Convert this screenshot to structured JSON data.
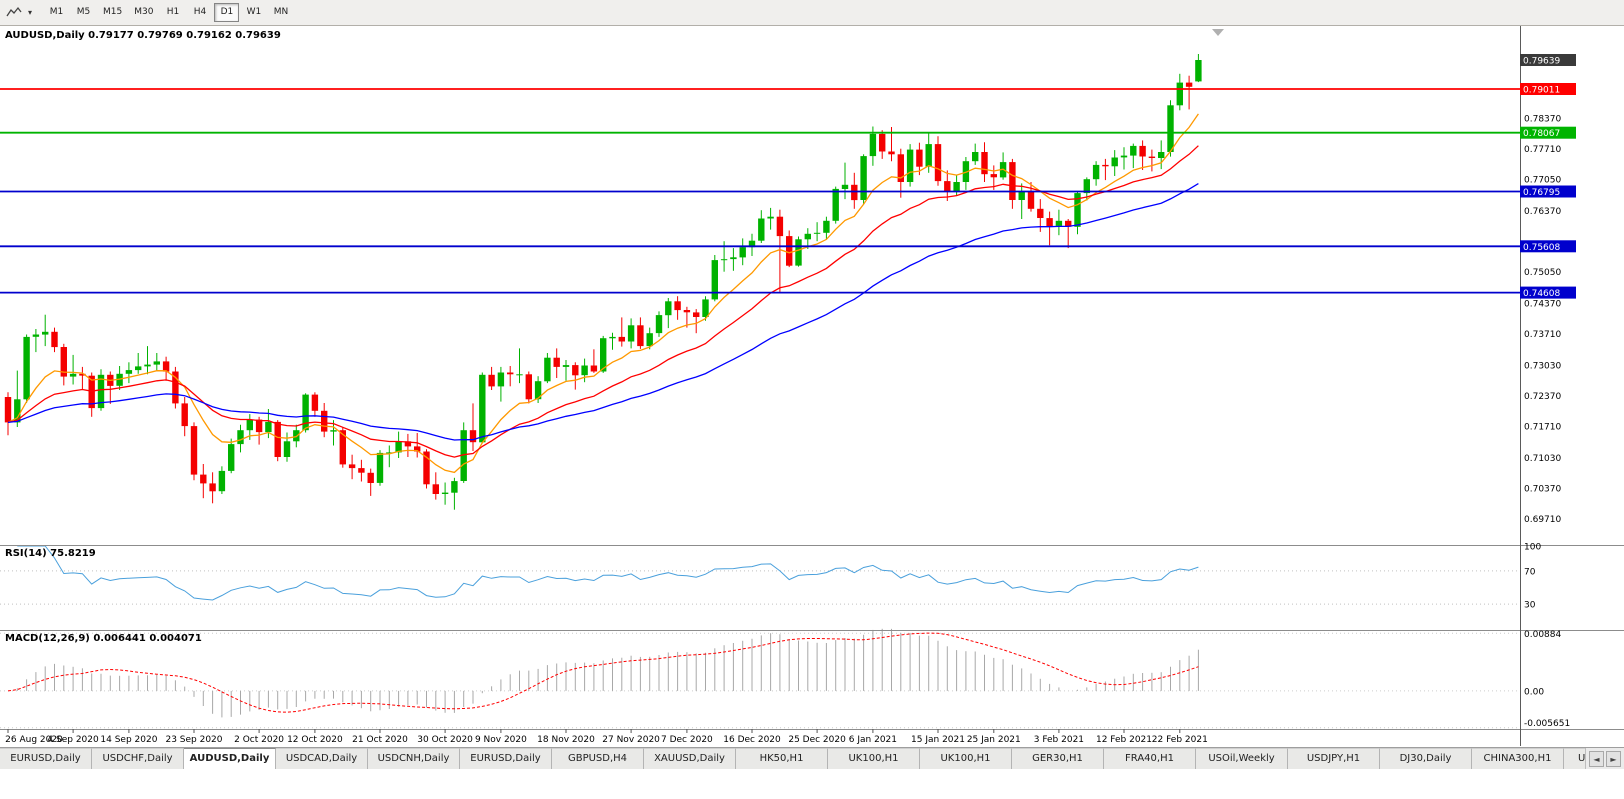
{
  "toolbar": {
    "dropdown_caret": "▾",
    "timeframes": [
      {
        "label": "M1",
        "active": false
      },
      {
        "label": "M5",
        "active": false
      },
      {
        "label": "M15",
        "active": false
      },
      {
        "label": "M30",
        "active": false
      },
      {
        "label": "H1",
        "active": false
      },
      {
        "label": "H4",
        "active": false
      },
      {
        "label": "D1",
        "active": true
      },
      {
        "label": "W1",
        "active": false
      },
      {
        "label": "MN",
        "active": false
      }
    ]
  },
  "chart": {
    "title": "AUDUSD,Daily 0.79177 0.79769 0.79162 0.79639"
  },
  "chart_data": {
    "type": "candlestick",
    "symbol": "AUDUSD",
    "period": "Daily",
    "ohlc_current": {
      "open": "0.79177",
      "high": "0.79769",
      "low": "0.79162",
      "close": "0.79639"
    },
    "colors": {
      "up": "#00b200",
      "down": "#f40000"
    },
    "price_pane": {
      "top_price": 0.80353,
      "bottom_price": 0.69169
    },
    "candles": [
      [
        0.7235,
        0.7245,
        0.7152,
        0.718
      ],
      [
        0.718,
        0.7292,
        0.717,
        0.723
      ],
      [
        0.723,
        0.737,
        0.7222,
        0.7365
      ],
      [
        0.7365,
        0.7382,
        0.7332,
        0.737
      ],
      [
        0.737,
        0.7413,
        0.7345,
        0.7376
      ],
      [
        0.7376,
        0.7385,
        0.7332,
        0.7343
      ],
      [
        0.7343,
        0.735,
        0.726,
        0.7279
      ],
      [
        0.7279,
        0.7326,
        0.7262,
        0.7285
      ],
      [
        0.7285,
        0.73,
        0.7252,
        0.7281
      ],
      [
        0.7281,
        0.7288,
        0.7192,
        0.7211
      ],
      [
        0.7211,
        0.7295,
        0.7205,
        0.7283
      ],
      [
        0.7283,
        0.729,
        0.722,
        0.7259
      ],
      [
        0.7259,
        0.7302,
        0.725,
        0.7285
      ],
      [
        0.7285,
        0.731,
        0.7265,
        0.7293
      ],
      [
        0.7293,
        0.733,
        0.7285,
        0.7301
      ],
      [
        0.7301,
        0.7345,
        0.7284,
        0.7305
      ],
      [
        0.7305,
        0.733,
        0.729,
        0.7312
      ],
      [
        0.7312,
        0.7322,
        0.727,
        0.729
      ],
      [
        0.729,
        0.73,
        0.721,
        0.7221
      ],
      [
        0.7221,
        0.7235,
        0.715,
        0.7172
      ],
      [
        0.7172,
        0.718,
        0.7055,
        0.7067
      ],
      [
        0.7067,
        0.709,
        0.7016,
        0.7048
      ],
      [
        0.7048,
        0.7072,
        0.7005,
        0.7031
      ],
      [
        0.7031,
        0.7085,
        0.7025,
        0.7075
      ],
      [
        0.7075,
        0.7145,
        0.707,
        0.7133
      ],
      [
        0.7133,
        0.7175,
        0.7115,
        0.7163
      ],
      [
        0.7163,
        0.7198,
        0.7142,
        0.7186
      ],
      [
        0.7186,
        0.7192,
        0.7132,
        0.7159
      ],
      [
        0.7159,
        0.7209,
        0.7146,
        0.7181
      ],
      [
        0.7181,
        0.7185,
        0.7096,
        0.7105
      ],
      [
        0.7105,
        0.7158,
        0.7095,
        0.7139
      ],
      [
        0.7139,
        0.7175,
        0.7126,
        0.7163
      ],
      [
        0.7163,
        0.7243,
        0.7158,
        0.724
      ],
      [
        0.724,
        0.7245,
        0.7192,
        0.7205
      ],
      [
        0.7205,
        0.7222,
        0.7148,
        0.716
      ],
      [
        0.716,
        0.7185,
        0.713,
        0.7163
      ],
      [
        0.7163,
        0.717,
        0.7082,
        0.7089
      ],
      [
        0.7089,
        0.711,
        0.7057,
        0.7081
      ],
      [
        0.7081,
        0.7099,
        0.7052,
        0.7071
      ],
      [
        0.7071,
        0.708,
        0.7021,
        0.7049
      ],
      [
        0.7049,
        0.712,
        0.7043,
        0.7114
      ],
      [
        0.7114,
        0.713,
        0.7083,
        0.7115
      ],
      [
        0.7115,
        0.716,
        0.7103,
        0.7139
      ],
      [
        0.7139,
        0.7155,
        0.7105,
        0.7128
      ],
      [
        0.7128,
        0.7157,
        0.7104,
        0.7117
      ],
      [
        0.7117,
        0.7122,
        0.7037,
        0.7046
      ],
      [
        0.7046,
        0.7072,
        0.7013,
        0.7025
      ],
      [
        0.7025,
        0.705,
        0.7002,
        0.7028
      ],
      [
        0.7028,
        0.706,
        0.6991,
        0.7053
      ],
      [
        0.7053,
        0.718,
        0.7049,
        0.7163
      ],
      [
        0.7163,
        0.7221,
        0.7118,
        0.7137
      ],
      [
        0.7137,
        0.7288,
        0.7135,
        0.7283
      ],
      [
        0.7283,
        0.73,
        0.725,
        0.7258
      ],
      [
        0.7258,
        0.73,
        0.7225,
        0.7288
      ],
      [
        0.7288,
        0.7302,
        0.7258,
        0.7284
      ],
      [
        0.7284,
        0.734,
        0.7265,
        0.7284
      ],
      [
        0.7284,
        0.729,
        0.7221,
        0.723
      ],
      [
        0.723,
        0.728,
        0.7222,
        0.7269
      ],
      [
        0.7269,
        0.733,
        0.7265,
        0.732
      ],
      [
        0.732,
        0.734,
        0.7276,
        0.73
      ],
      [
        0.73,
        0.7315,
        0.727,
        0.7304
      ],
      [
        0.7304,
        0.731,
        0.7251,
        0.7282
      ],
      [
        0.7282,
        0.7318,
        0.7267,
        0.7303
      ],
      [
        0.7303,
        0.7338,
        0.7287,
        0.729
      ],
      [
        0.729,
        0.7367,
        0.7287,
        0.7362
      ],
      [
        0.7362,
        0.7374,
        0.7337,
        0.7365
      ],
      [
        0.7365,
        0.7407,
        0.7344,
        0.7355
      ],
      [
        0.7355,
        0.7405,
        0.734,
        0.739
      ],
      [
        0.739,
        0.7407,
        0.7339,
        0.7345
      ],
      [
        0.7345,
        0.7385,
        0.7338,
        0.7373
      ],
      [
        0.7373,
        0.742,
        0.7365,
        0.7412
      ],
      [
        0.7412,
        0.7449,
        0.7384,
        0.7442
      ],
      [
        0.7442,
        0.7453,
        0.7402,
        0.7423
      ],
      [
        0.7423,
        0.743,
        0.7385,
        0.7418
      ],
      [
        0.7418,
        0.7425,
        0.7373,
        0.7408
      ],
      [
        0.7408,
        0.7453,
        0.74,
        0.7446
      ],
      [
        0.7446,
        0.7542,
        0.7442,
        0.7531
      ],
      [
        0.7531,
        0.7572,
        0.7506,
        0.7533
      ],
      [
        0.7533,
        0.7557,
        0.7508,
        0.7537
      ],
      [
        0.7537,
        0.7578,
        0.752,
        0.7559
      ],
      [
        0.7559,
        0.7588,
        0.754,
        0.7573
      ],
      [
        0.7573,
        0.7639,
        0.7568,
        0.7621
      ],
      [
        0.7621,
        0.7644,
        0.7597,
        0.7625
      ],
      [
        0.7625,
        0.764,
        0.7462,
        0.7583
      ],
      [
        0.7583,
        0.7595,
        0.7516,
        0.7519
      ],
      [
        0.7519,
        0.7582,
        0.7517,
        0.7576
      ],
      [
        0.7576,
        0.76,
        0.7555,
        0.7588
      ],
      [
        0.7588,
        0.7613,
        0.7572,
        0.759
      ],
      [
        0.759,
        0.7625,
        0.7575,
        0.7616
      ],
      [
        0.7616,
        0.769,
        0.761,
        0.7685
      ],
      [
        0.7685,
        0.7742,
        0.7663,
        0.7694
      ],
      [
        0.7694,
        0.772,
        0.7642,
        0.7661
      ],
      [
        0.7661,
        0.776,
        0.7652,
        0.7756
      ],
      [
        0.7756,
        0.782,
        0.7735,
        0.7804
      ],
      [
        0.7804,
        0.7812,
        0.775,
        0.7766
      ],
      [
        0.7766,
        0.7819,
        0.7745,
        0.776
      ],
      [
        0.776,
        0.7772,
        0.7666,
        0.77
      ],
      [
        0.77,
        0.7782,
        0.769,
        0.777
      ],
      [
        0.777,
        0.7785,
        0.7715,
        0.7733
      ],
      [
        0.7733,
        0.7805,
        0.772,
        0.7782
      ],
      [
        0.7782,
        0.7799,
        0.7692,
        0.7702
      ],
      [
        0.7702,
        0.7725,
        0.7659,
        0.7679
      ],
      [
        0.7679,
        0.7714,
        0.767,
        0.77
      ],
      [
        0.77,
        0.7754,
        0.7683,
        0.7745
      ],
      [
        0.7745,
        0.7783,
        0.7737,
        0.7765
      ],
      [
        0.7765,
        0.7786,
        0.77,
        0.7717
      ],
      [
        0.7717,
        0.7736,
        0.7683,
        0.771
      ],
      [
        0.771,
        0.7764,
        0.7705,
        0.7743
      ],
      [
        0.7743,
        0.775,
        0.7642,
        0.7661
      ],
      [
        0.7661,
        0.7697,
        0.762,
        0.768
      ],
      [
        0.768,
        0.77,
        0.7636,
        0.7642
      ],
      [
        0.7642,
        0.7663,
        0.7592,
        0.7622
      ],
      [
        0.7622,
        0.7636,
        0.7563,
        0.7605
      ],
      [
        0.7605,
        0.764,
        0.7585,
        0.7616
      ],
      [
        0.7616,
        0.762,
        0.7557,
        0.7603
      ],
      [
        0.7603,
        0.768,
        0.7587,
        0.7676
      ],
      [
        0.7676,
        0.771,
        0.766,
        0.7706
      ],
      [
        0.7706,
        0.7745,
        0.7692,
        0.7737
      ],
      [
        0.7737,
        0.775,
        0.7704,
        0.7734
      ],
      [
        0.7734,
        0.7769,
        0.7713,
        0.7753
      ],
      [
        0.7753,
        0.7775,
        0.7727,
        0.7757
      ],
      [
        0.7757,
        0.7783,
        0.773,
        0.7778
      ],
      [
        0.7778,
        0.779,
        0.7726,
        0.7755
      ],
      [
        0.7755,
        0.777,
        0.7723,
        0.7752
      ],
      [
        0.7752,
        0.779,
        0.7728,
        0.7765
      ],
      [
        0.7765,
        0.7877,
        0.7755,
        0.7866
      ],
      [
        0.7866,
        0.7934,
        0.7855,
        0.7915
      ],
      [
        0.7915,
        0.793,
        0.7857,
        0.7906
      ],
      [
        0.79177,
        0.79769,
        0.79162,
        0.79639
      ]
    ],
    "x_ticks": [
      {
        "i": 0,
        "label": "26 Aug 2020"
      },
      {
        "i": 7,
        "label": "4 Sep 2020"
      },
      {
        "i": 13,
        "label": "14 Sep 2020"
      },
      {
        "i": 20,
        "label": "23 Sep 2020"
      },
      {
        "i": 27,
        "label": "2 Oct 2020"
      },
      {
        "i": 33,
        "label": "12 Oct 2020"
      },
      {
        "i": 40,
        "label": "21 Oct 2020"
      },
      {
        "i": 47,
        "label": "30 Oct 2020"
      },
      {
        "i": 53,
        "label": "9 Nov 2020"
      },
      {
        "i": 60,
        "label": "18 Nov 2020"
      },
      {
        "i": 67,
        "label": "27 Nov 2020"
      },
      {
        "i": 73,
        "label": "7 Dec 2020"
      },
      {
        "i": 80,
        "label": "16 Dec 2020"
      },
      {
        "i": 87,
        "label": "25 Dec 2020"
      },
      {
        "i": 93,
        "label": "6 Jan 2021"
      },
      {
        "i": 100,
        "label": "15 Jan 2021"
      },
      {
        "i": 106,
        "label": "25 Jan 2021"
      },
      {
        "i": 113,
        "label": "3 Feb 2021"
      },
      {
        "i": 120,
        "label": "12 Feb 2021"
      },
      {
        "i": 126,
        "label": "22 Feb 2021"
      }
    ],
    "price_axis_labels": [
      {
        "text": "0.78370",
        "price": 0.7837
      },
      {
        "text": "0.77710",
        "price": 0.7771
      },
      {
        "text": "0.77050",
        "price": 0.7705
      },
      {
        "text": "0.76370",
        "price": 0.7637
      },
      {
        "text": "0.75050",
        "price": 0.7505
      },
      {
        "text": "0.74370",
        "price": 0.7437
      },
      {
        "text": "0.73710",
        "price": 0.7371
      },
      {
        "text": "0.73030",
        "price": 0.7303
      },
      {
        "text": "0.72370",
        "price": 0.7237
      },
      {
        "text": "0.71710",
        "price": 0.7171
      },
      {
        "text": "0.71030",
        "price": 0.7103
      },
      {
        "text": "0.70370",
        "price": 0.7037
      },
      {
        "text": "0.69710",
        "price": 0.6971
      }
    ],
    "current_price_badge": {
      "text": "0.79639",
      "price": 0.79639,
      "color": "#3a3a3a"
    },
    "hlines": [
      {
        "price": 0.79011,
        "badge": "0.79011",
        "color": "#ff0000"
      },
      {
        "price": 0.78067,
        "badge": "0.78067",
        "color": "#00b400"
      },
      {
        "price": 0.76795,
        "badge": "0.76795",
        "color": "#0000cd"
      },
      {
        "price": 0.75608,
        "badge": "0.75608",
        "color": "#0000cd"
      },
      {
        "price": 0.74608,
        "badge": "0.74608",
        "color": "#0000cd"
      }
    ],
    "moving_averages": [
      {
        "period": 9,
        "type": "ema",
        "color": "#ff9900"
      },
      {
        "period": 21,
        "type": "ema",
        "color": "#ff0000"
      },
      {
        "period": 45,
        "type": "ema",
        "color": "#0000ff"
      }
    ],
    "indicators": {
      "rsi": {
        "label": "RSI(14) 75.8219",
        "period": 14,
        "value": 75.8219,
        "color": "#4aa0dc",
        "levels": [
          {
            "text": "100",
            "v": 100,
            "dotted": false
          },
          {
            "text": "70",
            "v": 70,
            "dotted": true
          },
          {
            "text": "30",
            "v": 30,
            "dotted": true
          }
        ]
      },
      "macd": {
        "label": "MACD(12,26,9) 0.006441 0.004071",
        "fast": 12,
        "slow": 26,
        "signal": 9,
        "main": 0.006441,
        "signal_value": 0.004071,
        "hist_color": "#a8a8a8",
        "signal_color": "#ff0000",
        "pane_max": 0.0092,
        "pane_min": -0.0057,
        "axis_labels": [
          {
            "text": "0.00884",
            "v": 0.00884
          },
          {
            "text": "0.00",
            "v": 0
          },
          {
            "text": "-0.005651",
            "v": -0.005651
          }
        ]
      }
    }
  },
  "bottom_tabs": {
    "scroll_left_icon": "◄",
    "scroll_right_icon": "►",
    "tabs": [
      {
        "label": "EURUSD,Daily",
        "active": false
      },
      {
        "label": "USDCHF,Daily",
        "active": false
      },
      {
        "label": "AUDUSD,Daily",
        "active": true
      },
      {
        "label": "USDCAD,Daily",
        "active": false
      },
      {
        "label": "USDCNH,Daily",
        "active": false
      },
      {
        "label": "EURUSD,Daily",
        "active": false
      },
      {
        "label": "GBPUSD,H4",
        "active": false
      },
      {
        "label": "XAUUSD,Daily",
        "active": false
      },
      {
        "label": "HK50,H1",
        "active": false
      },
      {
        "label": "UK100,H1",
        "active": false
      },
      {
        "label": "UK100,H1",
        "active": false
      },
      {
        "label": "GER30,H1",
        "active": false
      },
      {
        "label": "FRA40,H1",
        "active": false
      },
      {
        "label": "USOil,Weekly",
        "active": false
      },
      {
        "label": "USDJPY,H1",
        "active": false
      },
      {
        "label": "DJ30,Daily",
        "active": false
      },
      {
        "label": "CHINA300,H1",
        "active": false
      },
      {
        "label": "U",
        "active": false,
        "partial": true
      }
    ]
  }
}
